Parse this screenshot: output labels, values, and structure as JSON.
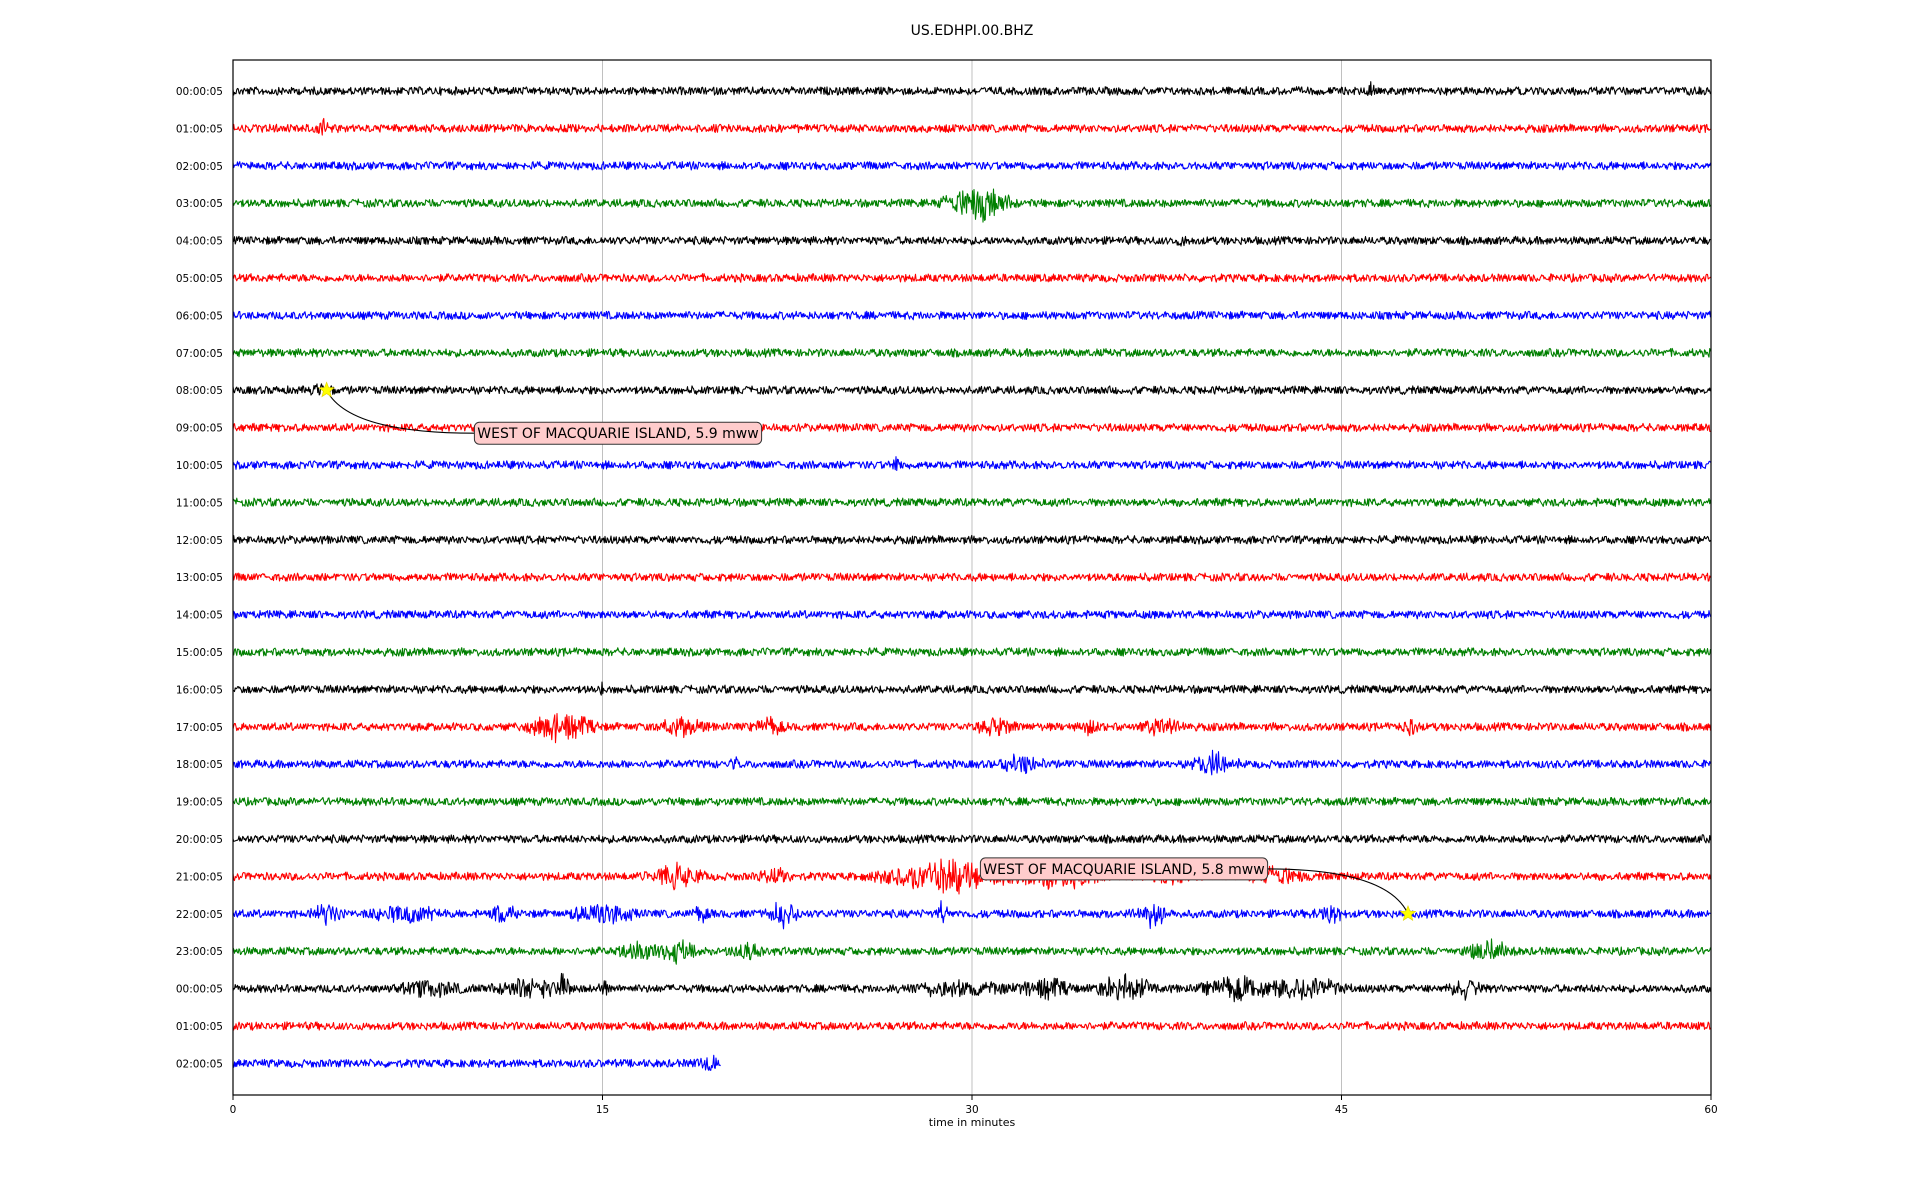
{
  "chart_data": {
    "type": "line",
    "title": "US.EDHPI.00.BHZ",
    "xlabel": "time in minutes",
    "xlim": [
      0,
      60
    ],
    "xticks": [
      0,
      15,
      30,
      45,
      60
    ],
    "xtick_labels": [
      "0",
      "15",
      "30",
      "45",
      "60"
    ],
    "grid": "vertical lines at x ticks",
    "row_colors": [
      "#000000",
      "#ff0000",
      "#0000ff",
      "#008000"
    ],
    "row_labels": [
      "00:00:05",
      "01:00:05",
      "02:00:05",
      "03:00:05",
      "04:00:05",
      "05:00:05",
      "06:00:05",
      "07:00:05",
      "08:00:05",
      "09:00:05",
      "10:00:05",
      "11:00:05",
      "12:00:05",
      "13:00:05",
      "14:00:05",
      "15:00:05",
      "16:00:05",
      "17:00:05",
      "18:00:05",
      "19:00:05",
      "20:00:05",
      "21:00:05",
      "22:00:05",
      "23:00:05",
      "00:00:05",
      "01:00:05",
      "02:00:05"
    ],
    "last_row_end_minute": 19.8,
    "bursts": [
      {
        "row": 0,
        "center": 46.2,
        "width": 0.2,
        "amp": 1.4
      },
      {
        "row": 1,
        "center": 3.7,
        "width": 0.5,
        "amp": 1.6
      },
      {
        "row": 3,
        "center": 30.2,
        "width": 1.8,
        "amp": 4.0
      },
      {
        "row": 4,
        "center": 38.5,
        "width": 0.2,
        "amp": 2.0
      },
      {
        "row": 8,
        "center": 3.6,
        "width": 0.6,
        "amp": 1.2
      },
      {
        "row": 10,
        "center": 26.9,
        "width": 0.2,
        "amp": 1.8
      },
      {
        "row": 16,
        "center": 15.0,
        "width": 0.15,
        "amp": 1.6
      },
      {
        "row": 17,
        "center": 13.3,
        "width": 1.6,
        "amp": 4.0
      },
      {
        "row": 17,
        "center": 18.2,
        "width": 1.2,
        "amp": 2.2
      },
      {
        "row": 17,
        "center": 21.8,
        "width": 0.8,
        "amp": 1.8
      },
      {
        "row": 17,
        "center": 31.0,
        "width": 1.0,
        "amp": 2.0
      },
      {
        "row": 17,
        "center": 34.8,
        "width": 0.4,
        "amp": 1.8
      },
      {
        "row": 17,
        "center": 37.8,
        "width": 1.2,
        "amp": 2.0
      },
      {
        "row": 17,
        "center": 47.8,
        "width": 0.4,
        "amp": 1.8
      },
      {
        "row": 18,
        "center": 20.3,
        "width": 0.3,
        "amp": 1.6
      },
      {
        "row": 18,
        "center": 32.0,
        "width": 1.2,
        "amp": 2.0
      },
      {
        "row": 18,
        "center": 39.8,
        "width": 1.2,
        "amp": 2.8
      },
      {
        "row": 21,
        "center": 18.0,
        "width": 1.4,
        "amp": 2.8
      },
      {
        "row": 21,
        "center": 22.0,
        "width": 0.8,
        "amp": 1.8
      },
      {
        "row": 21,
        "center": 29.0,
        "width": 3.5,
        "amp": 4.0
      },
      {
        "row": 21,
        "center": 33.5,
        "width": 2.5,
        "amp": 3.0
      },
      {
        "row": 21,
        "center": 38.0,
        "width": 1.0,
        "amp": 2.0
      },
      {
        "row": 21,
        "center": 42.3,
        "width": 1.4,
        "amp": 2.2
      },
      {
        "row": 22,
        "center": 3.8,
        "width": 0.8,
        "amp": 2.2
      },
      {
        "row": 22,
        "center": 7.0,
        "width": 1.8,
        "amp": 2.0
      },
      {
        "row": 22,
        "center": 11.0,
        "width": 0.6,
        "amp": 2.6
      },
      {
        "row": 22,
        "center": 15.0,
        "width": 1.6,
        "amp": 2.6
      },
      {
        "row": 22,
        "center": 19.0,
        "width": 0.4,
        "amp": 1.8
      },
      {
        "row": 22,
        "center": 22.3,
        "width": 0.8,
        "amp": 3.0
      },
      {
        "row": 22,
        "center": 28.8,
        "width": 0.3,
        "amp": 3.0
      },
      {
        "row": 22,
        "center": 37.3,
        "width": 1.0,
        "amp": 2.6
      },
      {
        "row": 22,
        "center": 44.5,
        "width": 0.8,
        "amp": 2.2
      },
      {
        "row": 23,
        "center": 16.5,
        "width": 1.0,
        "amp": 2.6
      },
      {
        "row": 23,
        "center": 18.0,
        "width": 1.0,
        "amp": 2.6
      },
      {
        "row": 23,
        "center": 21.0,
        "width": 1.0,
        "amp": 1.8
      },
      {
        "row": 23,
        "center": 51.0,
        "width": 1.2,
        "amp": 2.4
      },
      {
        "row": 24,
        "center": 8.0,
        "width": 1.6,
        "amp": 1.8
      },
      {
        "row": 24,
        "center": 12.0,
        "width": 1.8,
        "amp": 2.2
      },
      {
        "row": 24,
        "center": 13.4,
        "width": 0.3,
        "amp": 3.8
      },
      {
        "row": 24,
        "center": 15.0,
        "width": 0.3,
        "amp": 2.2
      },
      {
        "row": 24,
        "center": 29.5,
        "width": 3.0,
        "amp": 1.6
      },
      {
        "row": 24,
        "center": 33.0,
        "width": 1.2,
        "amp": 2.6
      },
      {
        "row": 24,
        "center": 36.2,
        "width": 1.5,
        "amp": 3.4
      },
      {
        "row": 24,
        "center": 41.0,
        "width": 2.0,
        "amp": 3.0
      },
      {
        "row": 24,
        "center": 43.8,
        "width": 1.8,
        "amp": 2.6
      },
      {
        "row": 24,
        "center": 50.0,
        "width": 0.8,
        "amp": 2.2
      },
      {
        "row": 26,
        "center": 19.3,
        "width": 0.6,
        "amp": 1.8
      }
    ],
    "annotations": [
      {
        "text": "WEST OF MACQUARIE ISLAND, 5.9 mww",
        "star_row": 8,
        "star_x": 3.8,
        "label_row": 9.15,
        "label_x": 9.8,
        "label_side": "left",
        "curve": "down"
      },
      {
        "text": "WEST OF MACQUARIE ISLAND, 5.8 mww",
        "star_row": 22,
        "star_x": 47.7,
        "label_row": 20.8,
        "label_x": 42.0,
        "label_side": "right",
        "curve": "up"
      }
    ],
    "star_color": "#ffff00",
    "label_box_color": "#ffcccc"
  }
}
